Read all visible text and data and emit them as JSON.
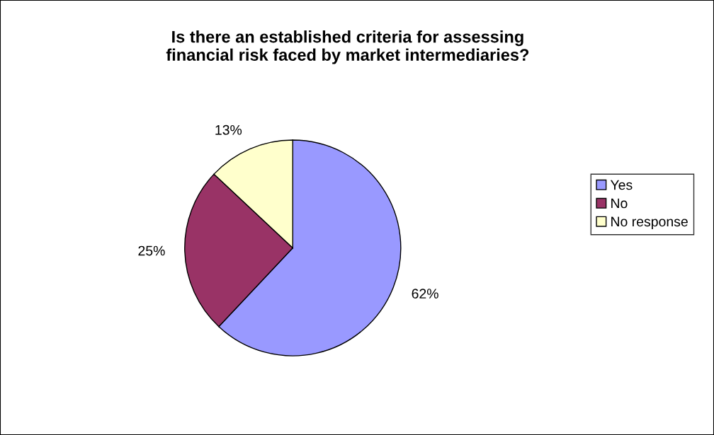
{
  "chart_data": {
    "type": "pie",
    "title": "Is there an established criteria for assessing\nfinancial risk faced by market intermediaries?",
    "categories": [
      "Yes",
      "No",
      "No response"
    ],
    "values": [
      62,
      25,
      13
    ],
    "colors": [
      "#9999ff",
      "#993366",
      "#ffffcc"
    ],
    "value_labels": [
      "62%",
      "25%",
      "13%"
    ],
    "legend": "right"
  }
}
